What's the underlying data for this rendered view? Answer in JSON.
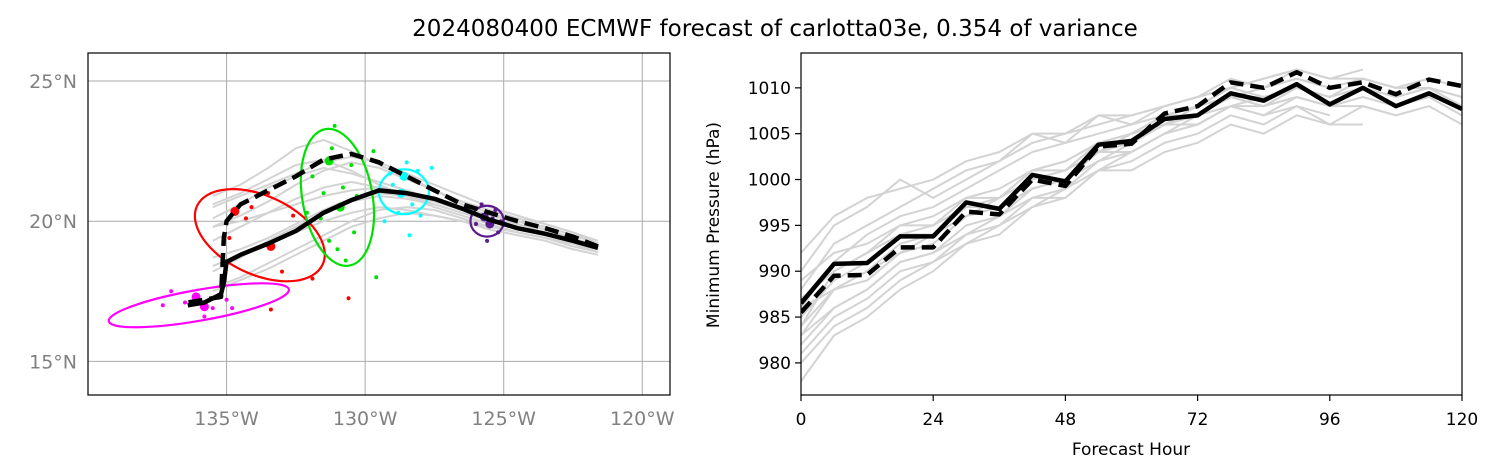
{
  "title": "2024080400 ECMWF forecast of carlotta03e, 0.354 of variance",
  "colors": {
    "ensemble": "#d3d3d3",
    "mean": "#000000",
    "map_tick": "#808080",
    "map_grid": "#aaaaaa",
    "cluster_colors": [
      "#ff00ff",
      "#ff0000",
      "#00e000",
      "#00ffff",
      "#5b1a8f"
    ]
  },
  "chart_data": [
    {
      "type": "scatter",
      "panel": "track-map",
      "xlabel": "",
      "ylabel": "",
      "xlim": [
        -140.0,
        -119.0
      ],
      "ylim": [
        13.8,
        26.0
      ],
      "grid": true,
      "x_ticks": [
        -135,
        -130,
        -125,
        -120
      ],
      "x_tick_labels": [
        "135°W",
        "130°W",
        "125°W",
        "120°W"
      ],
      "y_ticks": [
        15,
        20,
        25
      ],
      "y_tick_labels": [
        "15°N",
        "20°N",
        "25°N"
      ],
      "mean_track_solid": {
        "lon": [
          -121.6,
          -122.5,
          -123.5,
          -124.5,
          -125.5,
          -126.5,
          -127.5,
          -128.5,
          -129.5,
          -130.5,
          -131.5,
          -132.5,
          -133.5,
          -134.5,
          -135.0,
          -135.1,
          -135.2,
          -135.8,
          -136.4
        ],
        "lat": [
          19.05,
          19.3,
          19.55,
          19.75,
          20.05,
          20.45,
          20.8,
          21.0,
          21.1,
          20.75,
          20.3,
          19.65,
          19.2,
          18.8,
          18.55,
          17.8,
          17.4,
          17.1,
          17.0
        ]
      },
      "mean_track_dashed": {
        "lon": [
          -121.6,
          -122.5,
          -123.5,
          -124.5,
          -125.5,
          -126.5,
          -127.5,
          -128.5,
          -129.5,
          -130.5,
          -131.5,
          -132.5,
          -133.5,
          -134.5,
          -135.0,
          -135.1,
          -135.2,
          -135.8,
          -136.4
        ],
        "lat": [
          19.1,
          19.45,
          19.75,
          20.0,
          20.3,
          20.6,
          21.1,
          21.6,
          22.1,
          22.4,
          22.2,
          21.6,
          21.1,
          20.6,
          20.0,
          19.4,
          17.3,
          17.2,
          17.1
        ]
      },
      "ensemble_tracks_lon": [
        -121.6,
        -122.5,
        -123.5,
        -124.5,
        -125.5,
        -126.5,
        -127.5,
        -128.5,
        -129.5,
        -130.5,
        -131.5,
        -132.5,
        -133.5,
        -134.5,
        -135.5
      ],
      "ensemble_tracks_lat": [
        [
          19.2,
          19.5,
          19.8,
          20.0,
          20.3,
          20.6,
          21.1,
          21.6,
          22.0,
          22.5,
          22.9,
          22.6,
          21.9,
          21.3,
          20.9
        ],
        [
          19.0,
          19.3,
          19.5,
          19.7,
          20.0,
          20.3,
          20.6,
          20.8,
          20.9,
          20.7,
          20.3,
          19.8,
          19.3,
          18.7,
          18.2
        ],
        [
          19.1,
          19.4,
          19.7,
          20.0,
          20.2,
          20.5,
          20.8,
          21.0,
          21.2,
          21.1,
          20.9,
          20.6,
          20.3,
          20.0,
          19.8
        ],
        [
          18.9,
          19.2,
          19.4,
          19.6,
          19.8,
          20.1,
          20.4,
          20.5,
          20.4,
          20.0,
          19.5,
          19.0,
          18.5,
          18.0,
          17.6
        ],
        [
          19.2,
          19.6,
          19.9,
          20.2,
          20.5,
          20.9,
          21.3,
          21.7,
          22.1,
          22.3,
          22.1,
          21.7,
          21.3,
          20.9,
          20.5
        ],
        [
          19.0,
          19.2,
          19.4,
          19.6,
          19.9,
          20.2,
          20.5,
          20.9,
          21.3,
          21.8,
          22.2,
          22.0,
          21.5,
          21.0,
          20.6
        ],
        [
          19.1,
          19.3,
          19.6,
          19.8,
          20.1,
          20.4,
          20.7,
          20.9,
          21.0,
          20.8,
          20.4,
          19.9,
          19.4,
          19.0,
          18.7
        ],
        [
          18.8,
          19.0,
          19.3,
          19.5,
          19.7,
          20.0,
          20.2,
          20.3,
          20.1,
          19.8,
          19.3,
          18.8,
          18.3,
          17.9,
          17.5
        ],
        [
          19.3,
          19.6,
          19.9,
          20.1,
          20.4,
          20.7,
          21.1,
          21.5,
          21.9,
          22.1,
          21.8,
          21.3,
          20.7,
          20.2,
          19.8
        ],
        [
          19.0,
          19.3,
          19.6,
          19.9,
          20.1,
          20.3,
          20.6,
          20.9,
          21.2,
          21.4,
          21.2,
          20.8,
          20.3,
          19.8,
          19.3
        ],
        [
          19.1,
          19.4,
          19.7,
          20.0,
          20.2,
          20.5,
          20.8,
          21.1,
          21.4,
          21.7,
          21.9,
          21.6,
          21.2,
          20.6,
          20.1
        ],
        [
          18.9,
          19.1,
          19.4,
          19.6,
          19.8,
          20.0,
          20.2,
          20.4,
          20.5,
          20.3,
          20.0,
          19.6,
          19.2,
          18.8,
          18.4
        ]
      ],
      "clusters": [
        {
          "color": "#ff00ff",
          "ellipse": {
            "lon": -136.0,
            "lat": 17.0,
            "rx_deg": 3.3,
            "ry_deg": 0.55,
            "angle_deg": -10
          },
          "large_points": [
            [
              -136.1,
              17.3
            ],
            [
              -135.8,
              16.95
            ]
          ],
          "small_points": [
            [
              -137.0,
              17.5
            ],
            [
              -136.5,
              17.1
            ],
            [
              -135.5,
              16.9
            ],
            [
              -135.0,
              17.2
            ],
            [
              -135.8,
              16.6
            ],
            [
              -137.3,
              17.0
            ],
            [
              -134.8,
              16.9
            ]
          ]
        },
        {
          "color": "#ff0000",
          "ellipse": {
            "lon": -133.8,
            "lat": 19.5,
            "rx_deg": 2.5,
            "ry_deg": 1.4,
            "angle_deg": 25
          },
          "large_points": [
            [
              -134.7,
              20.35
            ],
            [
              -133.4,
              19.1
            ]
          ],
          "small_points": [
            [
              -134.3,
              20.1
            ],
            [
              -133.5,
              21.0
            ],
            [
              -132.6,
              20.2
            ],
            [
              -133.0,
              18.2
            ],
            [
              -131.9,
              17.95
            ],
            [
              -130.6,
              17.25
            ],
            [
              -133.4,
              16.85
            ],
            [
              -134.9,
              19.4
            ],
            [
              -134.1,
              20.5
            ]
          ]
        },
        {
          "color": "#00e000",
          "ellipse": {
            "lon": -131.0,
            "lat": 20.85,
            "rx_deg": 2.5,
            "ry_deg": 1.25,
            "angle_deg": 80
          },
          "large_points": [
            [
              -131.3,
              22.15
            ],
            [
              -130.9,
              20.5
            ]
          ],
          "small_points": [
            [
              -131.1,
              23.4
            ],
            [
              -131.2,
              22.6
            ],
            [
              -130.5,
              22.0
            ],
            [
              -131.9,
              21.6
            ],
            [
              -131.5,
              21.0
            ],
            [
              -130.8,
              21.2
            ],
            [
              -131.6,
              20.1
            ],
            [
              -130.4,
              19.6
            ],
            [
              -131.0,
              19.0
            ],
            [
              -130.7,
              18.6
            ],
            [
              -129.7,
              22.5
            ],
            [
              -129.6,
              18.0
            ],
            [
              -132.1,
              20.3
            ],
            [
              -130.3,
              20.9
            ],
            [
              -131.3,
              19.3
            ]
          ]
        },
        {
          "color": "#00ffff",
          "ellipse": {
            "lon": -128.6,
            "lat": 21.05,
            "rx_deg": 0.9,
            "ry_deg": 0.8,
            "angle_deg": 0
          },
          "large_points": [
            [
              -128.6,
              21.6
            ],
            [
              -128.7,
              21.0
            ]
          ],
          "small_points": [
            [
              -128.5,
              22.1
            ],
            [
              -128.1,
              21.8
            ],
            [
              -129.0,
              21.3
            ],
            [
              -128.3,
              20.6
            ],
            [
              -128.8,
              20.3
            ],
            [
              -129.3,
              20.0
            ],
            [
              -128.0,
              20.2
            ],
            [
              -128.4,
              19.5
            ],
            [
              -129.1,
              21.7
            ],
            [
              -127.6,
              21.9
            ]
          ]
        },
        {
          "color": "#5b1a8f",
          "ellipse": {
            "lon": -125.6,
            "lat": 20.0,
            "rx_deg": 0.6,
            "ry_deg": 0.55,
            "angle_deg": 0
          },
          "large_points": [
            [
              -125.7,
              20.15
            ],
            [
              -125.5,
              19.9
            ]
          ],
          "small_points": [
            [
              -125.8,
              20.6
            ],
            [
              -125.3,
              20.4
            ],
            [
              -126.0,
              19.9
            ],
            [
              -125.2,
              19.6
            ],
            [
              -125.6,
              19.3
            ],
            [
              -125.9,
              20.2
            ],
            [
              -125.4,
              20.1
            ],
            [
              -125.1,
              20.0
            ]
          ]
        }
      ]
    },
    {
      "type": "line",
      "panel": "minimum-pressure",
      "xlabel": "Forecast Hour",
      "ylabel": "Minimum Pressure (hPa)",
      "xlim": [
        0,
        120
      ],
      "ylim": [
        976.5,
        1013.8
      ],
      "grid": false,
      "x_ticks": [
        0,
        24,
        48,
        72,
        96,
        120
      ],
      "y_ticks": [
        980,
        985,
        990,
        995,
        1000,
        1005,
        1010
      ],
      "x": [
        0,
        6,
        12,
        18,
        24,
        30,
        36,
        42,
        48,
        54,
        60,
        66,
        72,
        78,
        84,
        90,
        96,
        102,
        108,
        114,
        120
      ],
      "series": [
        {
          "style": "solid-mean",
          "values": [
            986.5,
            990.8,
            990.9,
            993.8,
            993.8,
            997.5,
            996.8,
            1000.5,
            999.8,
            1003.8,
            1004.2,
            1006.6,
            1007.0,
            1009.4,
            1008.6,
            1010.4,
            1008.2,
            1010.0,
            1008.0,
            1009.4,
            1007.7
          ]
        },
        {
          "style": "dashed-mean",
          "values": [
            985.5,
            989.5,
            989.6,
            992.6,
            992.6,
            996.5,
            996.2,
            1000.0,
            999.3,
            1003.6,
            1003.9,
            1007.2,
            1008.0,
            1010.6,
            1010.0,
            1011.7,
            1010.0,
            1010.6,
            1009.3,
            1010.9,
            1010.2
          ]
        }
      ],
      "ensemble": [
        [
          984.0,
          988.0,
          990.0,
          992.0,
          994.0,
          996.0,
          998.0,
          1000.0,
          1001.0,
          1003.0,
          1005.0,
          1007.0,
          1008.0,
          1010.0,
          1011.0,
          1012.0,
          1011.0,
          1012.0
        ],
        [
          982.0,
          986.0,
          988.0,
          991.0,
          992.0,
          994.0,
          996.0,
          998.0,
          999.0,
          1002.0,
          1004.0,
          1006.0,
          1007.0,
          1009.0,
          1010.0,
          1011.0,
          1010.0,
          1011.0,
          1010.0,
          1011.0,
          1010.0
        ],
        [
          988.0,
          993.0,
          995.0,
          997.0,
          999.0,
          1001.0,
          1002.0,
          1004.0,
          1005.0,
          1006.0,
          1007.0,
          1008.0,
          1009.0,
          1010.0,
          1011.0,
          1012.0,
          1011.0
        ],
        [
          980.0,
          984.0,
          986.0,
          989.0,
          991.0,
          993.0,
          995.0,
          997.0,
          999.0,
          1001.0,
          1003.0,
          1005.0,
          1006.0,
          1008.0,
          1009.0,
          1010.0,
          1009.0,
          1010.0,
          1009.0,
          1010.0,
          1009.0
        ],
        [
          986.0,
          991.0,
          994.0,
          996.0,
          997.0,
          999.0,
          1001.0,
          1003.0,
          1004.0,
          1005.0,
          1006.0,
          1007.0,
          1008.0,
          1009.0,
          1008.0,
          1009.0,
          1008.0,
          1008.0,
          1007.0,
          1008.0,
          1006.0
        ],
        [
          990.0,
          995.0,
          997.0,
          1000.0,
          998.0,
          1000.0,
          1002.0,
          1005.0,
          1004.0,
          1007.0,
          1006.0,
          1008.0,
          1009.0,
          1011.0,
          1010.0,
          1012.0
        ],
        [
          978.0,
          983.0,
          985.0,
          988.0,
          990.0,
          993.0,
          994.0,
          997.0,
          998.0,
          1001.0,
          1002.0,
          1004.0,
          1005.0,
          1007.0,
          1006.0,
          1008.0,
          1007.0
        ],
        [
          985.0,
          989.0,
          991.0,
          994.0,
          995.0,
          998.0,
          998.0,
          1001.0,
          1001.0,
          1004.0,
          1004.0,
          1006.0,
          1007.0,
          1009.0,
          1008.0,
          1010.0,
          1009.0,
          1011.0,
          1010.0,
          1011.0
        ],
        [
          983.0,
          988.0,
          990.0,
          993.0,
          994.0,
          996.0,
          997.0,
          999.0,
          1000.0,
          1003.0,
          1003.0,
          1005.0,
          1006.0,
          1008.0,
          1007.0,
          1009.0,
          1008.0,
          1009.0,
          1008.0,
          1009.0,
          1007.0
        ],
        [
          992.0,
          996.0,
          998.0,
          999.0,
          1000.0,
          1002.0,
          1003.0,
          1005.0,
          1005.0,
          1007.0,
          1007.0,
          1008.0,
          1009.0,
          1010.0,
          1009.0,
          1010.0
        ],
        [
          981.0,
          985.0,
          987.0,
          990.0,
          991.0,
          994.0,
          995.0,
          998.0,
          998.0,
          1001.0,
          1001.0,
          1003.0,
          1004.0,
          1006.0,
          1005.0,
          1007.0,
          1006.0,
          1008.0,
          1007.0
        ],
        [
          987.0,
          990.0,
          992.0,
          995.0,
          996.0,
          998.0,
          999.0,
          1001.0,
          1002.0,
          1004.0,
          1005.0,
          1006.0,
          1008.0,
          1010.0,
          1011.0,
          1012.0,
          1011.0,
          1011.0,
          1010.0,
          1010.0,
          1008.0
        ],
        [
          989.0,
          992.0,
          993.0,
          995.0,
          995.0,
          997.0,
          997.0,
          999.0,
          1000.0,
          1002.0,
          1003.0,
          1005.0,
          1007.0,
          1008.0,
          1007.0,
          1008.0,
          1006.0,
          1006.0
        ],
        [
          983.0,
          986.0,
          988.0,
          991.0,
          992.0,
          995.0,
          996.0,
          999.0,
          1000.0,
          1003.0,
          1004.0,
          1006.0,
          1007.0,
          1009.0,
          1009.0,
          1010.0,
          1009.0,
          1010.0,
          1009.0,
          1010.0,
          1009.0
        ],
        [
          986.0,
          988.0,
          989.0,
          992.0,
          993.0,
          996.0,
          997.0,
          1000.0,
          1001.0,
          1004.0,
          1005.0,
          1007.0,
          1007.0,
          1009.0,
          1010.0,
          1011.0,
          1010.0,
          1011.0
        ],
        [
          984.0,
          990.0,
          992.0,
          994.0,
          994.0,
          997.0,
          998.0,
          1001.0,
          1002.0,
          1004.0,
          1004.0,
          1006.0,
          1006.0,
          1008.0,
          1008.0,
          1009.0,
          1008.0
        ]
      ]
    }
  ]
}
